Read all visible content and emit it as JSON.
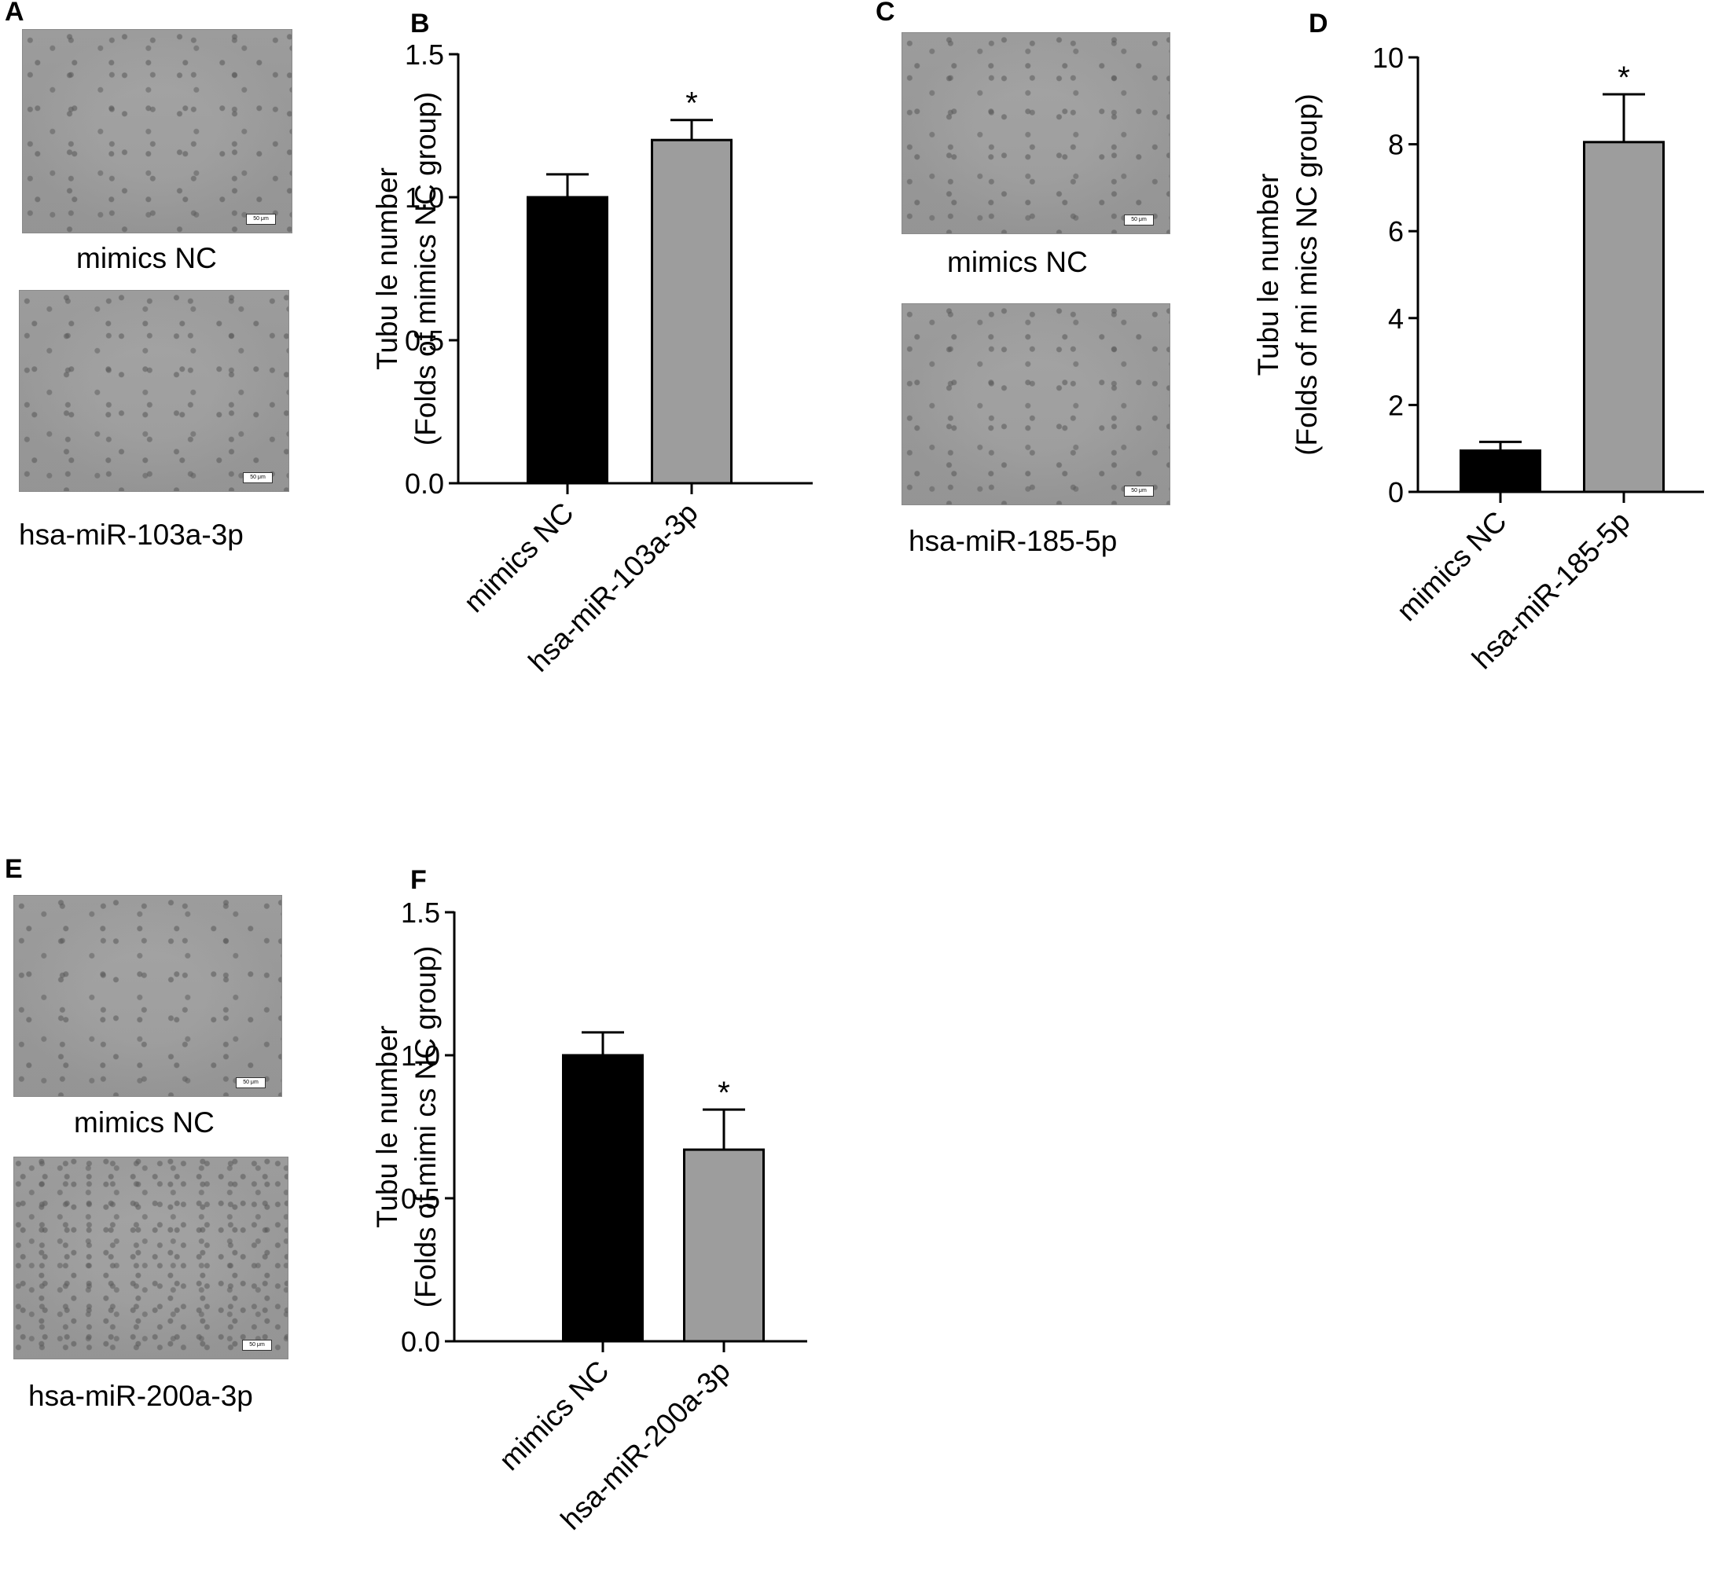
{
  "panels": {
    "A": {
      "letter": "A",
      "top_caption": "mimics NC",
      "bottom_caption": "hsa-miR-103a-3p",
      "top_scalebar": "50 μm",
      "bottom_scalebar": "50 μm"
    },
    "C": {
      "letter": "C",
      "top_caption": "mimics NC",
      "bottom_caption": "hsa-miR-185-5p",
      "top_scalebar": "50 μm",
      "bottom_scalebar": "50 μm"
    },
    "E": {
      "letter": "E",
      "top_caption": "mimics NC",
      "bottom_caption": "hsa-miR-200a-3p",
      "top_scalebar": "50 μm",
      "bottom_scalebar": "50 μm"
    }
  },
  "chart_data": [
    {
      "id": "B",
      "letter": "B",
      "type": "bar",
      "categories": [
        "mimics NC",
        "hsa-miR-103a-3p"
      ],
      "values": [
        1.0,
        1.2
      ],
      "errors": [
        0.08,
        0.07
      ],
      "significance": [
        "",
        "*"
      ],
      "bar_colors": [
        "#000000",
        "#9d9d9d"
      ],
      "ylabel_line1": "Tubu le number",
      "ylabel_line2": "(Folds  of  mimics NC group)",
      "ylim": [
        0,
        1.5
      ],
      "yticks": [
        0.0,
        0.5,
        1.0,
        1.5
      ],
      "ytick_labels": [
        "0.0",
        "0.5",
        "1.0",
        "1.5"
      ],
      "grid": false
    },
    {
      "id": "D",
      "letter": "D",
      "type": "bar",
      "categories": [
        "mimics NC",
        "hsa-miR-185-5p"
      ],
      "values": [
        0.95,
        8.05
      ],
      "errors": [
        0.2,
        1.1
      ],
      "significance": [
        "",
        "*"
      ],
      "bar_colors": [
        "#000000",
        "#9d9d9d"
      ],
      "ylabel_line1": "Tubu le number",
      "ylabel_line2": "(Folds  of  mi mics NC group)",
      "ylim": [
        0,
        10
      ],
      "yticks": [
        0,
        2,
        4,
        6,
        8,
        10
      ],
      "ytick_labels": [
        "0",
        "2",
        "4",
        "6",
        "8",
        "10"
      ],
      "grid": false
    },
    {
      "id": "F",
      "letter": "F",
      "type": "bar",
      "categories": [
        "mimics NC",
        "hsa-miR-200a-3p"
      ],
      "values": [
        1.0,
        0.67
      ],
      "errors": [
        0.08,
        0.14
      ],
      "significance": [
        "",
        "*"
      ],
      "bar_colors": [
        "#000000",
        "#9d9d9d"
      ],
      "ylabel_line1": "Tubu le number",
      "ylabel_line2": "(Folds  of mimi cs NC group)",
      "ylim": [
        0,
        1.5
      ],
      "yticks": [
        0.0,
        0.5,
        1.0,
        1.5
      ],
      "ytick_labels": [
        "0.0",
        "0.5",
        "1.0",
        "1.5"
      ],
      "grid": false
    }
  ]
}
